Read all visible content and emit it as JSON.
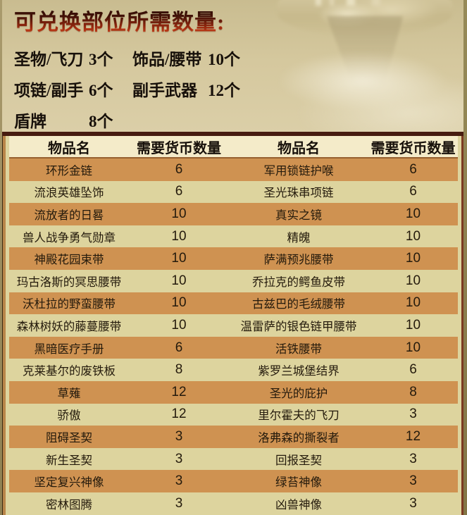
{
  "page": {
    "title": "可兑换部位所需数量:"
  },
  "parts": {
    "items": [
      {
        "label": "圣物/飞刀",
        "qty": "3个"
      },
      {
        "label": "饰品/腰带",
        "qty": "10个"
      },
      {
        "label": "项链/副手",
        "qty": "6个"
      },
      {
        "label": "副手武器",
        "qty": "12个"
      },
      {
        "label": "盾牌",
        "qty": "8个"
      }
    ]
  },
  "table": {
    "headers": [
      "物品名",
      "需要货币数量",
      "物品名",
      "需要货币数量"
    ],
    "rows": [
      [
        "环形金链",
        "6",
        "军用锁链护喉",
        "6"
      ],
      [
        "流浪英雄坠饰",
        "6",
        "圣光珠串项链",
        "6"
      ],
      [
        "流放者的日晷",
        "10",
        "真实之镜",
        "10"
      ],
      [
        "兽人战争勇气勋章",
        "10",
        "精魄",
        "10"
      ],
      [
        "神殿花园束带",
        "10",
        "萨满预兆腰带",
        "10"
      ],
      [
        "玛古洛斯的冥思腰带",
        "10",
        "乔拉克的鳄鱼皮带",
        "10"
      ],
      [
        "沃杜拉的野蛮腰带",
        "10",
        "古兹巴的毛绒腰带",
        "10"
      ],
      [
        "森林树妖的藤蔓腰带",
        "10",
        "温雷萨的银色链甲腰带",
        "10"
      ],
      [
        "黑暗医疗手册",
        "6",
        "活铁腰带",
        "10"
      ],
      [
        "克莱基尔的废铁板",
        "8",
        "紫罗兰城堡结界",
        "6"
      ],
      [
        "草薙",
        "12",
        "圣光的庇护",
        "8"
      ],
      [
        "骄傲",
        "12",
        "里尔霍夫的飞刀",
        "3"
      ],
      [
        "阻碍圣契",
        "3",
        "洛弗森的撕裂者",
        "12"
      ],
      [
        "新生圣契",
        "3",
        "回报圣契",
        "3"
      ],
      [
        "坚定复兴神像",
        "3",
        "绿苔神像",
        "3"
      ],
      [
        "密林图腾",
        "3",
        "凶兽神像",
        "3"
      ]
    ]
  },
  "colors": {
    "title_red": "#e8491f",
    "row_orange": "#cf9251",
    "row_cream": "#ddd49e",
    "header_bg": "#f4ebc9",
    "table_top_border": "#471c10",
    "parchment": "#e7dcba"
  }
}
